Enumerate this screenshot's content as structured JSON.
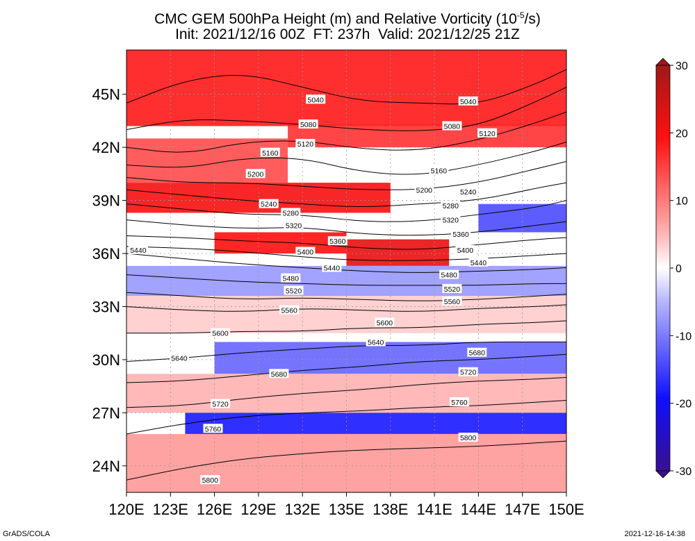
{
  "title": {
    "line1": "CMC GEM 500hPa Height (m) and Relative Vorticity (10",
    "line1_sup": "-5",
    "line1_end": "/s)",
    "line2": "Init: 2021/12/16 00Z  FT: 237h  Valid: 2021/12/25 21Z"
  },
  "axes": {
    "lat_labels": [
      "45N",
      "42N",
      "39N",
      "36N",
      "33N",
      "30N",
      "27N",
      "24N"
    ],
    "lat_values": [
      45,
      42,
      39,
      36,
      33,
      30,
      27,
      24
    ],
    "lon_labels": [
      "120E",
      "123E",
      "126E",
      "129E",
      "132E",
      "135E",
      "138E",
      "141E",
      "144E",
      "147E",
      "150E"
    ],
    "lon_values": [
      120,
      123,
      126,
      129,
      132,
      135,
      138,
      141,
      144,
      147,
      150
    ],
    "lat_range": [
      22.5,
      47.5
    ],
    "lon_range": [
      120,
      150
    ]
  },
  "colorbar": {
    "labels": [
      "30",
      "20",
      "10",
      "0",
      "-10",
      "-20",
      "-30"
    ],
    "values": [
      30,
      20,
      10,
      0,
      -10,
      -20,
      -30
    ],
    "range": [
      -30,
      30
    ],
    "colors": {
      "max": "#b01818",
      "pos": "#ff1010",
      "zero": "#ffffff",
      "neg": "#1010ff",
      "min": "#3a1090"
    }
  },
  "contours": [
    {
      "label": "5040",
      "pts": [
        [
          120,
          44.5
        ],
        [
          124,
          45.8
        ],
        [
          128,
          46.2
        ],
        [
          132,
          45.4
        ],
        [
          136,
          44.6
        ],
        [
          140,
          44.5
        ],
        [
          144,
          44.4
        ],
        [
          148,
          45.6
        ],
        [
          150,
          46.4
        ]
      ]
    },
    {
      "label": "5080",
      "pts": [
        [
          120,
          43.0
        ],
        [
          124,
          43.6
        ],
        [
          128,
          43.5
        ],
        [
          132,
          43.3
        ],
        [
          136,
          43.0
        ],
        [
          140,
          42.9
        ],
        [
          144,
          43.2
        ],
        [
          148,
          44.6
        ],
        [
          150,
          45.4
        ]
      ]
    },
    {
      "label": "5120",
      "pts": [
        [
          120,
          42.0
        ],
        [
          124,
          41.6
        ],
        [
          128,
          42.3
        ],
        [
          132,
          42.4
        ],
        [
          136,
          41.9
        ],
        [
          140,
          41.8
        ],
        [
          144,
          42.4
        ],
        [
          148,
          43.4
        ],
        [
          150,
          44.0
        ]
      ]
    },
    {
      "label": "5160",
      "pts": [
        [
          120,
          41.0
        ],
        [
          124,
          40.8
        ],
        [
          128,
          41.4
        ],
        [
          132,
          41.4
        ],
        [
          136,
          40.6
        ],
        [
          140,
          40.4
        ],
        [
          144,
          41.0
        ],
        [
          148,
          41.8
        ],
        [
          150,
          42.3
        ]
      ]
    },
    {
      "label": "5200",
      "pts": [
        [
          120,
          40.3
        ],
        [
          124,
          40.0
        ],
        [
          128,
          40.0
        ],
        [
          132,
          39.8
        ],
        [
          136,
          39.6
        ],
        [
          140,
          39.6
        ],
        [
          144,
          40.0
        ],
        [
          148,
          40.8
        ],
        [
          150,
          41.2
        ]
      ]
    },
    {
      "label": "5240",
      "pts": [
        [
          120,
          39.6
        ],
        [
          124,
          39.3
        ],
        [
          128,
          39.0
        ],
        [
          132,
          38.8
        ],
        [
          136,
          38.6
        ],
        [
          140,
          38.8
        ],
        [
          144,
          39.0
        ],
        [
          148,
          39.7
        ],
        [
          150,
          40.0
        ]
      ]
    },
    {
      "label": "5280",
      "pts": [
        [
          120,
          38.8
        ],
        [
          124,
          38.5
        ],
        [
          128,
          38.2
        ],
        [
          132,
          38.2
        ],
        [
          136,
          37.8
        ],
        [
          140,
          37.8
        ],
        [
          144,
          38.2
        ],
        [
          148,
          38.6
        ],
        [
          150,
          39.0
        ]
      ]
    },
    {
      "label": "5320",
      "pts": [
        [
          120,
          37.9
        ],
        [
          124,
          37.6
        ],
        [
          128,
          37.4
        ],
        [
          132,
          37.5
        ],
        [
          136,
          37.1
        ],
        [
          140,
          37.0
        ],
        [
          144,
          37.2
        ],
        [
          148,
          37.6
        ],
        [
          150,
          37.8
        ]
      ]
    },
    {
      "label": "5360",
      "pts": [
        [
          120,
          37.0
        ],
        [
          124,
          36.9
        ],
        [
          128,
          36.7
        ],
        [
          132,
          36.6
        ],
        [
          136,
          36.3
        ],
        [
          140,
          36.2
        ],
        [
          144,
          36.5
        ],
        [
          148,
          36.8
        ],
        [
          150,
          36.9
        ]
      ]
    },
    {
      "label": "5400",
      "pts": [
        [
          120,
          36.4
        ],
        [
          124,
          36.3
        ],
        [
          128,
          36.1
        ],
        [
          132,
          35.8
        ],
        [
          136,
          35.6
        ],
        [
          140,
          35.6
        ],
        [
          144,
          35.7
        ],
        [
          148,
          35.9
        ],
        [
          150,
          36.0
        ]
      ]
    },
    {
      "label": "5440",
      "pts": [
        [
          120,
          36.0
        ],
        [
          124,
          35.7
        ],
        [
          128,
          35.4
        ],
        [
          132,
          35.2
        ],
        [
          136,
          35.0
        ],
        [
          140,
          34.9
        ],
        [
          144,
          35.0
        ],
        [
          148,
          35.1
        ],
        [
          150,
          35.2
        ]
      ]
    },
    {
      "label": "5480",
      "pts": [
        [
          120,
          34.8
        ],
        [
          124,
          34.6
        ],
        [
          128,
          34.4
        ],
        [
          132,
          34.3
        ],
        [
          136,
          34.2
        ],
        [
          140,
          34.2
        ],
        [
          144,
          34.2
        ],
        [
          148,
          34.3
        ],
        [
          150,
          34.3
        ]
      ]
    },
    {
      "label": "5520",
      "pts": [
        [
          120,
          33.8
        ],
        [
          124,
          33.6
        ],
        [
          128,
          33.4
        ],
        [
          132,
          33.5
        ],
        [
          136,
          33.4
        ],
        [
          140,
          33.3
        ],
        [
          144,
          33.4
        ],
        [
          148,
          33.6
        ],
        [
          150,
          33.7
        ]
      ]
    },
    {
      "label": "5560",
      "pts": [
        [
          120,
          33.0
        ],
        [
          124,
          32.8
        ],
        [
          128,
          32.7
        ],
        [
          132,
          32.9
        ],
        [
          136,
          32.8
        ],
        [
          140,
          32.7
        ],
        [
          144,
          32.9
        ],
        [
          148,
          33.0
        ],
        [
          150,
          33.1
        ]
      ]
    },
    {
      "label": "5600",
      "pts": [
        [
          120,
          31.5
        ],
        [
          124,
          31.5
        ],
        [
          128,
          31.6
        ],
        [
          132,
          31.6
        ],
        [
          136,
          31.8
        ],
        [
          140,
          31.8
        ],
        [
          144,
          32.0
        ],
        [
          148,
          32.1
        ],
        [
          150,
          32.2
        ]
      ]
    },
    {
      "label": "5640",
      "pts": [
        [
          120,
          29.9
        ],
        [
          124,
          30.1
        ],
        [
          128,
          30.4
        ],
        [
          132,
          30.6
        ],
        [
          136,
          30.8
        ],
        [
          140,
          30.8
        ],
        [
          144,
          31.0
        ],
        [
          148,
          31.0
        ],
        [
          150,
          31.0
        ]
      ]
    },
    {
      "label": "5680",
      "pts": [
        [
          120,
          28.7
        ],
        [
          124,
          28.8
        ],
        [
          128,
          29.1
        ],
        [
          132,
          29.4
        ],
        [
          136,
          29.6
        ],
        [
          140,
          29.9
        ],
        [
          144,
          30.0
        ],
        [
          148,
          30.2
        ],
        [
          150,
          30.3
        ]
      ]
    },
    {
      "label": "5720",
      "pts": [
        [
          120,
          27.3
        ],
        [
          124,
          27.4
        ],
        [
          128,
          27.8
        ],
        [
          132,
          28.1
        ],
        [
          136,
          28.3
        ],
        [
          140,
          28.6
        ],
        [
          144,
          28.8
        ],
        [
          148,
          28.9
        ],
        [
          150,
          29.0
        ]
      ]
    },
    {
      "label": "5760",
      "pts": [
        [
          120,
          25.8
        ],
        [
          124,
          26.4
        ],
        [
          128,
          26.8
        ],
        [
          132,
          27.0
        ],
        [
          136,
          27.1
        ],
        [
          140,
          27.3
        ],
        [
          144,
          27.4
        ],
        [
          148,
          27.6
        ],
        [
          150,
          27.7
        ]
      ]
    },
    {
      "label": "5800",
      "pts": [
        [
          120,
          23.2
        ],
        [
          124,
          23.9
        ],
        [
          128,
          24.4
        ],
        [
          132,
          24.7
        ],
        [
          136,
          24.9
        ],
        [
          140,
          25.0
        ],
        [
          144,
          25.1
        ],
        [
          148,
          25.3
        ],
        [
          150,
          25.4
        ]
      ]
    }
  ],
  "contour_labels": [
    {
      "text": "5040",
      "lon": 132.9,
      "lat": 44.7
    },
    {
      "text": "5040",
      "lon": 143.3,
      "lat": 44.6
    },
    {
      "text": "5080",
      "lon": 132.4,
      "lat": 43.3
    },
    {
      "text": "5080",
      "lon": 142.2,
      "lat": 43.2
    },
    {
      "text": "5120",
      "lon": 132.2,
      "lat": 42.2
    },
    {
      "text": "5120",
      "lon": 144.6,
      "lat": 42.8
    },
    {
      "text": "5160",
      "lon": 129.8,
      "lat": 41.7
    },
    {
      "text": "5160",
      "lon": 141.3,
      "lat": 40.7
    },
    {
      "text": "5200",
      "lon": 128.8,
      "lat": 40.5
    },
    {
      "text": "5200",
      "lon": 140.3,
      "lat": 39.6
    },
    {
      "text": "5240",
      "lon": 129.7,
      "lat": 38.8
    },
    {
      "text": "5240",
      "lon": 143.3,
      "lat": 39.5
    },
    {
      "text": "5280",
      "lon": 131.2,
      "lat": 38.3
    },
    {
      "text": "5280",
      "lon": 142.1,
      "lat": 38.7
    },
    {
      "text": "5320",
      "lon": 131.4,
      "lat": 37.6
    },
    {
      "text": "5320",
      "lon": 142.1,
      "lat": 37.9
    },
    {
      "text": "5360",
      "lon": 134.4,
      "lat": 36.7
    },
    {
      "text": "5360",
      "lon": 142.8,
      "lat": 37.1
    },
    {
      "text": "5400",
      "lon": 132.2,
      "lat": 36.1
    },
    {
      "text": "5400",
      "lon": 143.1,
      "lat": 36.2
    },
    {
      "text": "5440",
      "lon": 120.8,
      "lat": 36.2
    },
    {
      "text": "5440",
      "lon": 134.0,
      "lat": 35.2
    },
    {
      "text": "5440",
      "lon": 144.0,
      "lat": 35.5
    },
    {
      "text": "5480",
      "lon": 131.2,
      "lat": 34.6
    },
    {
      "text": "5480",
      "lon": 142.0,
      "lat": 34.8
    },
    {
      "text": "5520",
      "lon": 131.4,
      "lat": 33.9
    },
    {
      "text": "5520",
      "lon": 142.2,
      "lat": 34.0
    },
    {
      "text": "5560",
      "lon": 131.1,
      "lat": 32.8
    },
    {
      "text": "5560",
      "lon": 142.2,
      "lat": 33.3
    },
    {
      "text": "5600",
      "lon": 126.4,
      "lat": 31.5
    },
    {
      "text": "5600",
      "lon": 137.6,
      "lat": 32.1
    },
    {
      "text": "5640",
      "lon": 123.6,
      "lat": 30.1
    },
    {
      "text": "5640",
      "lon": 137.0,
      "lat": 31.0
    },
    {
      "text": "5680",
      "lon": 130.4,
      "lat": 29.2
    },
    {
      "text": "5680",
      "lon": 143.9,
      "lat": 30.4
    },
    {
      "text": "5720",
      "lon": 126.4,
      "lat": 27.5
    },
    {
      "text": "5720",
      "lon": 143.3,
      "lat": 29.3
    },
    {
      "text": "5760",
      "lon": 125.9,
      "lat": 26.1
    },
    {
      "text": "5760",
      "lon": 142.7,
      "lat": 27.6
    },
    {
      "text": "5800",
      "lon": 125.7,
      "lat": 23.2
    },
    {
      "text": "5800",
      "lon": 143.3,
      "lat": 25.6
    }
  ],
  "vorticity_areas": [
    {
      "lon": [
        120,
        150
      ],
      "lat": [
        43.2,
        47.5
      ],
      "value": 18
    },
    {
      "lon": [
        131,
        150
      ],
      "lat": [
        42.0,
        43.3
      ],
      "value": 16
    },
    {
      "lon": [
        120,
        131
      ],
      "lat": [
        40.0,
        42.5
      ],
      "value": 14
    },
    {
      "lon": [
        120,
        138
      ],
      "lat": [
        38.3,
        40.0
      ],
      "value": 22
    },
    {
      "lon": [
        126,
        135
      ],
      "lat": [
        36.0,
        37.2
      ],
      "value": 20
    },
    {
      "lon": [
        135,
        142
      ],
      "lat": [
        35.3,
        36.8
      ],
      "value": 24
    },
    {
      "lon": [
        144,
        150
      ],
      "lat": [
        37.2,
        38.8
      ],
      "value": -14
    },
    {
      "lon": [
        120,
        150
      ],
      "lat": [
        33.6,
        35.3
      ],
      "value": -8
    },
    {
      "lon": [
        120,
        150
      ],
      "lat": [
        31.5,
        33.6
      ],
      "value": 4
    },
    {
      "lon": [
        126,
        150
      ],
      "lat": [
        29.2,
        31.0
      ],
      "value": -12
    },
    {
      "lon": [
        120,
        150
      ],
      "lat": [
        27.0,
        29.2
      ],
      "value": 6
    },
    {
      "lon": [
        124,
        150
      ],
      "lat": [
        25.8,
        27.0
      ],
      "value": -18
    },
    {
      "lon": [
        120,
        150
      ],
      "lat": [
        22.5,
        25.8
      ],
      "value": 8
    }
  ],
  "footer": {
    "credit": "GrADS/COLA",
    "timestamp": "2021-12-16-14:38"
  }
}
